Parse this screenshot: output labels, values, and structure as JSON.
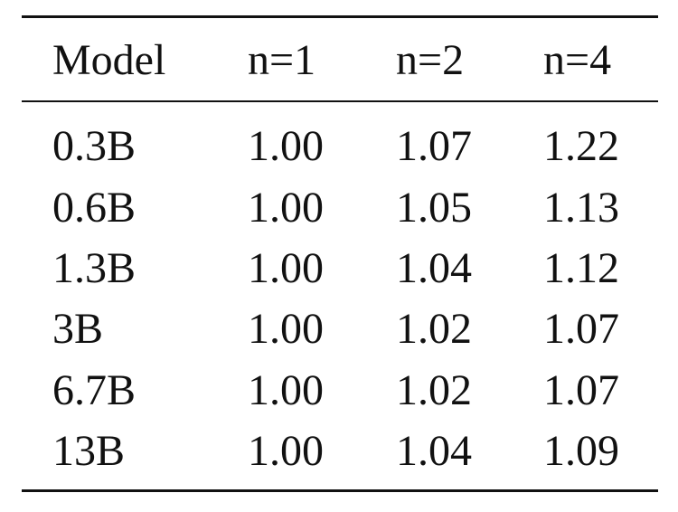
{
  "table": {
    "headers": [
      "Model",
      "n=1",
      "n=2",
      "n=4"
    ],
    "rows": [
      [
        "0.3B",
        "1.00",
        "1.07",
        "1.22"
      ],
      [
        "0.6B",
        "1.00",
        "1.05",
        "1.13"
      ],
      [
        "1.3B",
        "1.00",
        "1.04",
        "1.12"
      ],
      [
        "3B",
        "1.00",
        "1.02",
        "1.07"
      ],
      [
        "6.7B",
        "1.00",
        "1.02",
        "1.07"
      ],
      [
        "13B",
        "1.00",
        "1.04",
        "1.09"
      ]
    ]
  }
}
